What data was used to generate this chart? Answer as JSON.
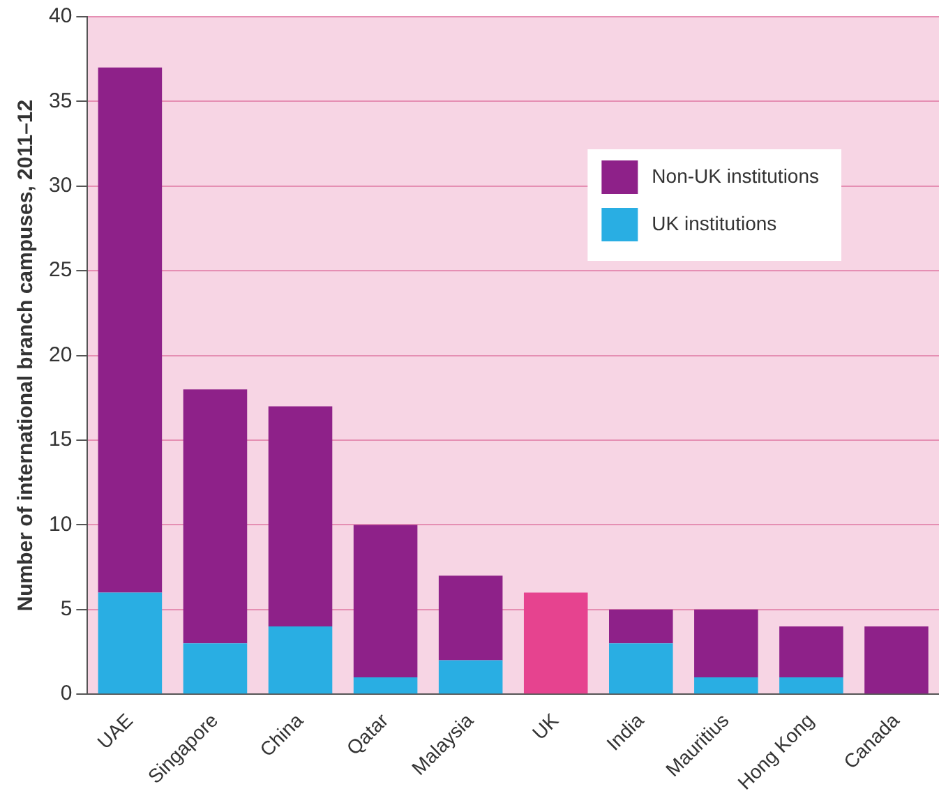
{
  "chart_data": {
    "type": "bar",
    "ylabel": "Number of international branch campuses, 2011–12",
    "categories": [
      "UAE",
      "Singapore",
      "China",
      "Qatar",
      "Malaysia",
      "UK",
      "India",
      "Mauritius",
      "Hong Kong",
      "Canada"
    ],
    "stacked": true,
    "series": [
      {
        "name": "UK institutions",
        "color": "#29aee3",
        "colors": [
          "#29aee3",
          "#29aee3",
          "#29aee3",
          "#29aee3",
          "#29aee3",
          "#e6438f",
          "#29aee3",
          "#29aee3",
          "#29aee3",
          "#29aee3"
        ],
        "values": [
          6,
          3,
          4,
          1,
          2,
          6,
          3,
          1,
          1,
          0
        ]
      },
      {
        "name": "Non-UK institutions",
        "color": "#8e2189",
        "values": [
          31,
          15,
          13,
          9,
          5,
          0,
          2,
          4,
          3,
          4
        ]
      }
    ],
    "ylim": [
      0,
      40
    ],
    "yticks": [
      0,
      5,
      10,
      15,
      20,
      25,
      30,
      35,
      40
    ],
    "grid": "y",
    "legend": "top right"
  }
}
